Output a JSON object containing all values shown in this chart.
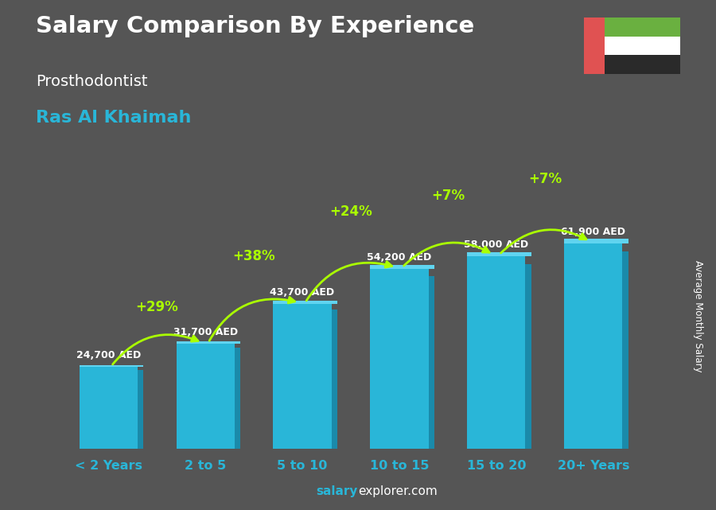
{
  "title": "Salary Comparison By Experience",
  "subtitle": "Prosthodontist",
  "city": "Ras Al Khaimah",
  "ylabel": "Average Monthly Salary",
  "xlabel_labels": [
    "< 2 Years",
    "2 to 5",
    "5 to 10",
    "10 to 15",
    "15 to 20",
    "20+ Years"
  ],
  "values": [
    24700,
    31700,
    43700,
    54200,
    58000,
    61900
  ],
  "value_labels": [
    "24,700 AED",
    "31,700 AED",
    "43,700 AED",
    "54,200 AED",
    "58,000 AED",
    "61,900 AED"
  ],
  "pct_labels": [
    "+29%",
    "+38%",
    "+24%",
    "+7%",
    "+7%"
  ],
  "bar_color": "#29b6d8",
  "bar_color_right": "#1a8aaa",
  "bar_color_top": "#60d4f0",
  "pct_color": "#aaff00",
  "title_color": "#ffffff",
  "subtitle_color": "#ffffff",
  "city_color": "#29b6d8",
  "value_label_color": "#ffffff",
  "xtick_color": "#29b6d8",
  "footer_salary_color": "#29b6d8",
  "footer_rest_color": "#ffffff",
  "background_color": "#555555",
  "bar_width": 0.6,
  "ylim": [
    0,
    80000
  ],
  "flag_colors": {
    "red": "#e05252",
    "green": "#6ab040",
    "white": "#ffffff",
    "black": "#2a2a2a"
  }
}
